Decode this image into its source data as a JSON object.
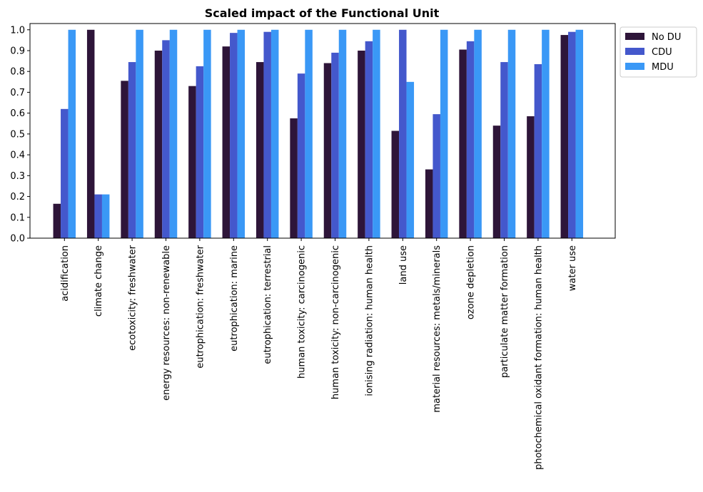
{
  "chart_data": {
    "type": "bar",
    "title": "Scaled impact of the Functional Unit",
    "xlabel": "",
    "ylabel": "",
    "ylim": [
      0,
      1.03
    ],
    "yticks": [
      "0.0",
      "0.1",
      "0.2",
      "0.3",
      "0.4",
      "0.5",
      "0.6",
      "0.7",
      "0.8",
      "0.9",
      "1.0"
    ],
    "grid": false,
    "legend_position": "outside top-right",
    "categories": [
      "acidification",
      "climate change",
      "ecotoxicity: freshwater",
      "energy resources: non-renewable",
      "eutrophication: freshwater",
      "eutrophication: marine",
      "eutrophication: terrestrial",
      "human toxicity: carcinogenic",
      "human toxicity: non-carcinogenic",
      "ionising radiation: human health",
      "land use",
      "material resources: metals/minerals",
      "ozone depletion",
      "particulate matter formation",
      "photochemical oxidant formation: human health",
      "water use"
    ],
    "series": [
      {
        "name": "No DU",
        "color": "#2e1539",
        "values": [
          0.165,
          1.0,
          0.755,
          0.9,
          0.73,
          0.92,
          0.845,
          0.575,
          0.84,
          0.9,
          0.515,
          0.33,
          0.905,
          0.54,
          0.585,
          0.975
        ]
      },
      {
        "name": "CDU",
        "color": "#4458cc",
        "values": [
          0.62,
          0.21,
          0.845,
          0.95,
          0.825,
          0.985,
          0.99,
          0.79,
          0.89,
          0.945,
          1.0,
          0.595,
          0.945,
          0.845,
          0.835,
          0.99
        ]
      },
      {
        "name": "MDU",
        "color": "#3a98f6",
        "values": [
          1.0,
          0.21,
          1.0,
          1.0,
          1.0,
          1.0,
          1.0,
          1.0,
          1.0,
          1.0,
          0.75,
          1.0,
          1.0,
          1.0,
          1.0,
          1.0
        ]
      }
    ]
  }
}
